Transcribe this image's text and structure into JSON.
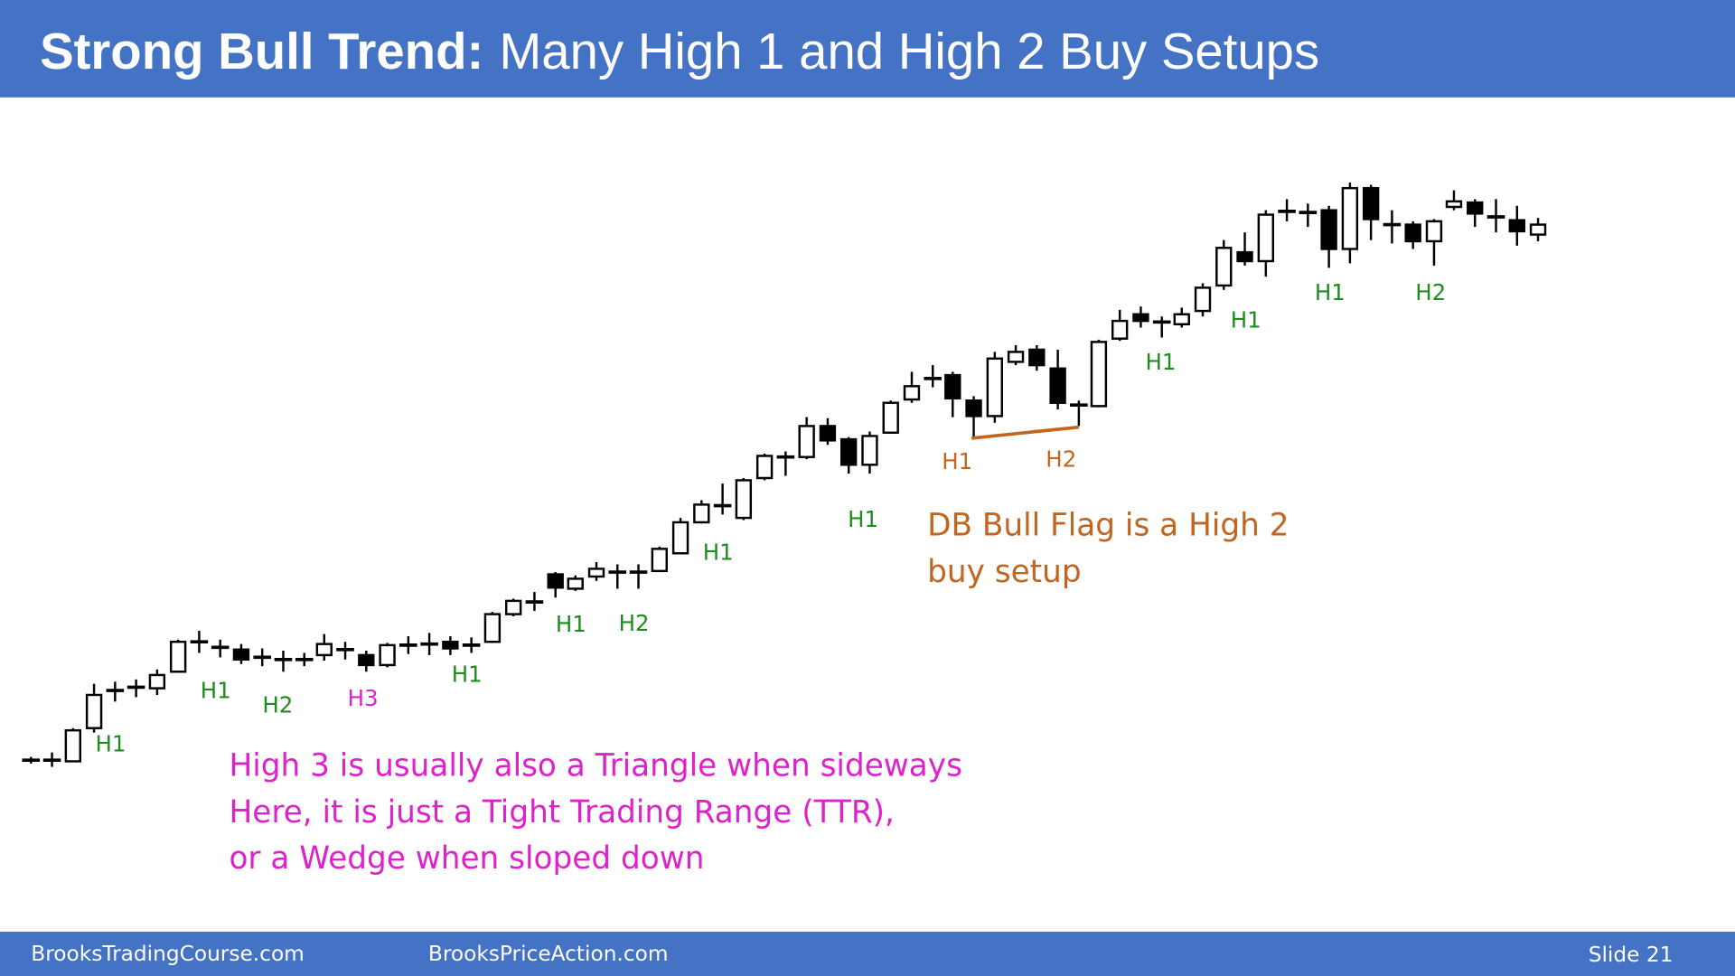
{
  "header": {
    "title_bold": "Strong Bull Trend:",
    "title_rest": "Many High 1 and High 2 Buy Setups"
  },
  "labels": [
    "H1",
    "H1",
    "H2",
    "H3",
    "H1",
    "H1",
    "H2",
    "H1",
    "H1",
    "H1",
    "H2",
    "H1",
    "H1",
    "H1",
    "H2"
  ],
  "note_flag": [
    "DB Bull Flag is a High 2",
    "buy setup"
  ],
  "note_h3": [
    "High 3 is usually also a Triangle when sideways",
    "Here, it is just a Tight Trading Range (TTR),",
    "or a Wedge when sloped down"
  ],
  "footer": {
    "left": "BrooksTradingCourse.com",
    "middle": "BrooksPriceAction.com",
    "slide": "Slide  21"
  }
}
